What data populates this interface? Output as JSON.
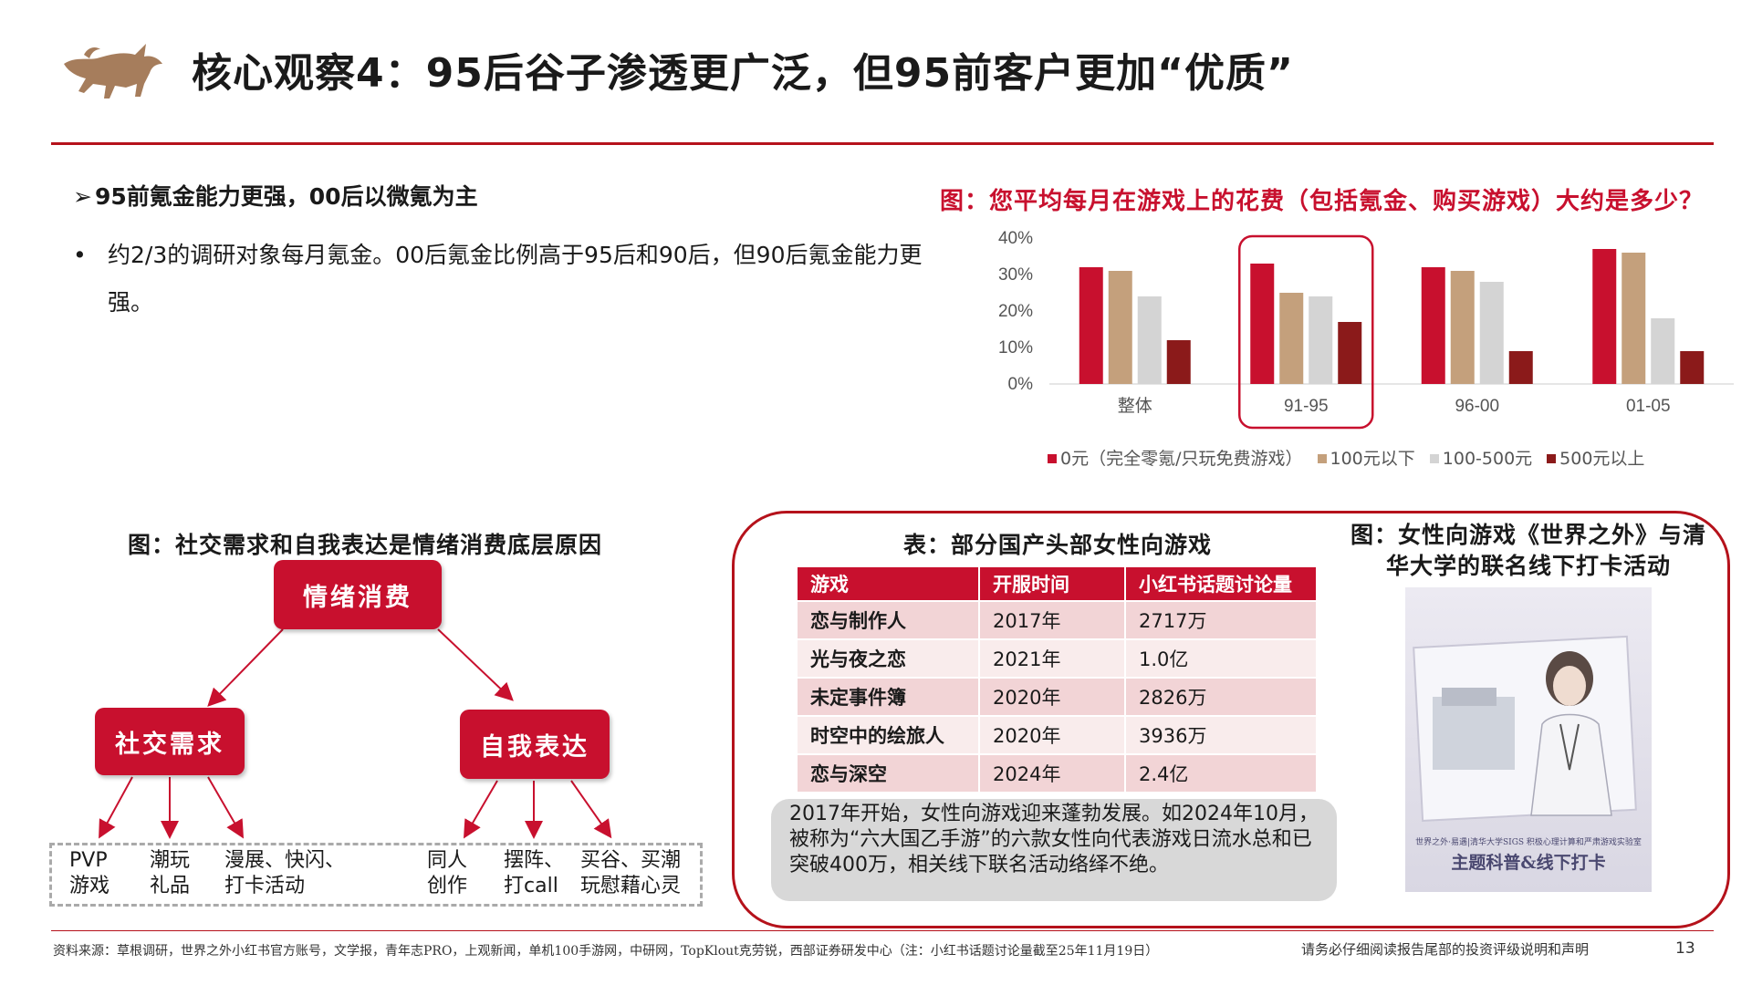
{
  "title": "核心观察4：95后谷子渗透更广泛，但95前客户更加“优质”",
  "bullets": {
    "head": "95前氪金能力更强，00后以微氪为主",
    "body": "约2/3的调研对象每月氪金。00后氪金比例高于95后和90后，但90后氪金能力更强。"
  },
  "chart_title": "图：您平均每月在游戏上的花费（包括氪金、购买游戏）大约是多少？",
  "chart_data": {
    "type": "bar",
    "categories": [
      "整体",
      "91-95",
      "96-00",
      "01-05"
    ],
    "highlight_category": "91-95",
    "y_ticks": [
      "40%",
      "30%",
      "20%",
      "10%",
      "0%"
    ],
    "ylim": [
      0,
      40
    ],
    "legend_position": "bottom",
    "grid": false,
    "series": [
      {
        "name": "0元（完全零氪/只玩免费游戏）",
        "color": "#c8102e",
        "values": [
          32,
          33,
          32,
          37
        ]
      },
      {
        "name": "100元以下",
        "color": "#c4a07c",
        "values": [
          31,
          25,
          31,
          36
        ]
      },
      {
        "name": "100-500元",
        "color": "#d4d4d4",
        "values": [
          24,
          24,
          28,
          18
        ]
      },
      {
        "name": "500元以上",
        "color": "#8b1a1a",
        "values": [
          12,
          17,
          9,
          9
        ]
      }
    ]
  },
  "diagram": {
    "title": "图：社交需求和自我表达是情绪消费底层原因",
    "root": "情绪消费",
    "left": "社交需求",
    "right": "自我表达",
    "leaves": [
      {
        "line1": "PVP",
        "line2": "游戏"
      },
      {
        "line1": "潮玩",
        "line2": "礼品"
      },
      {
        "line1": "漫展、快闪、",
        "line2": "打卡活动"
      },
      {
        "line1": "同人",
        "line2": "创作"
      },
      {
        "line1": "摆阵、",
        "line2": "打call"
      },
      {
        "line1": "买谷、买潮",
        "line2": "玩慰藉心灵"
      }
    ]
  },
  "table": {
    "title": "表：部分国产头部女性向游戏",
    "headers": [
      "游戏",
      "开服时间",
      "小红书话题讨论量"
    ],
    "rows": [
      [
        "恋与制作人",
        "2017年",
        "2717万"
      ],
      [
        "光与夜之恋",
        "2021年",
        "1.0亿"
      ],
      [
        "未定事件簿",
        "2020年",
        "2826万"
      ],
      [
        "时空中的绘旅人",
        "2020年",
        "3936万"
      ],
      [
        "恋与深空",
        "2024年",
        "2.4亿"
      ]
    ]
  },
  "note": "2017年开始，女性向游戏迎来蓬勃发展。如2024年10月，被称为“六大国乙手游”的六款女性向代表游戏日流水总和已突破400万，相关线下联名活动络绎不绝。",
  "photo": {
    "title": "图：女性向游戏《世界之外》与清华大学的联名线下打卡活动",
    "small_text": "世界之外·易遇|清华大学SIGS 积极心理计算和严肃游戏实验室",
    "big_text": "主题科普&线下打卡"
  },
  "footer": {
    "source": "资料来源：草根调研，世界之外小红书官方账号，文学报，青年志PRO，上观新闻，单机100手游网，中研网，TopKlout克劳锐，西部证券研发中心（注：小红书话题讨论量截至25年11月19日）",
    "disclaimer": "请务必仔细阅读报告尾部的投资评级说明和声明",
    "page": "13"
  }
}
